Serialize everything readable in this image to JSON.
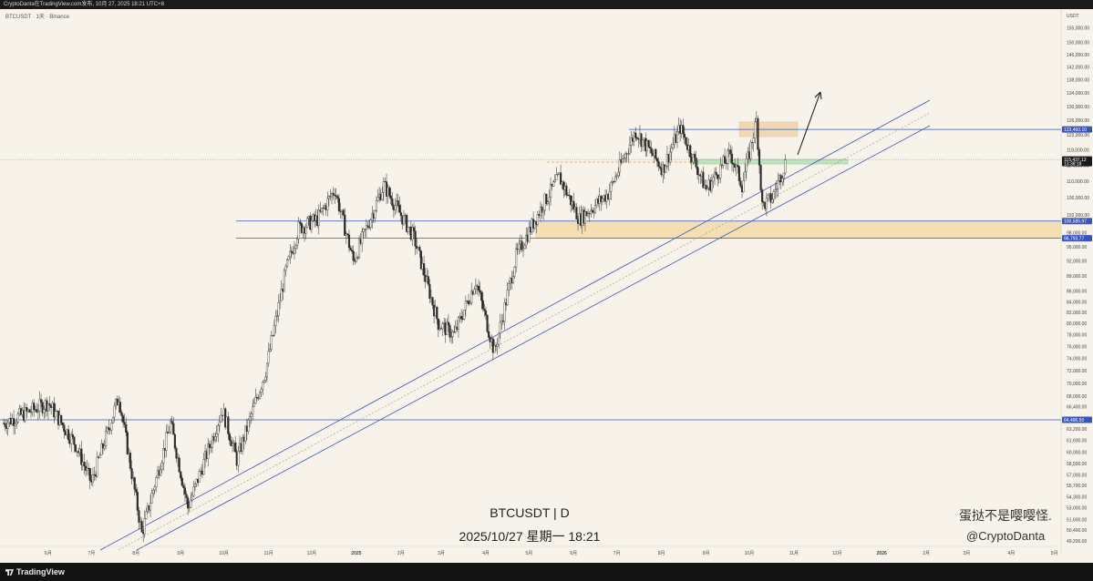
{
  "topbar": {
    "text": "CryptoDanta在TradingView.com发布, 10月 27, 2025 18:21 UTC+8"
  },
  "chart_info": {
    "symbol_line": "BTCUSDT · 1天 · Binance"
  },
  "watermark": {
    "title": "BTCUSDT | D",
    "time": "2025/10/27 星期一 18:21"
  },
  "signature": {
    "line1": "蛋挞不是嘤嘤怪.",
    "line2": "@CryptoDanta"
  },
  "branding": {
    "logo_text": "TradingView"
  },
  "colors": {
    "background": "#f7f3ea",
    "up_candle": "#2a2a2a",
    "down_candle": "#2a2a2a",
    "level_line": "#3a55b8",
    "zone_fill": "#f3d9a8",
    "green_zone": "#bfe3bf"
  },
  "chart_data": {
    "type": "line",
    "series": [
      {
        "values": [
          {
            "x": "2024-05",
            "y": 64000
          },
          {
            "x": "2024-06",
            "y": 67000
          },
          {
            "x": "2024-06-20",
            "y": 61000
          },
          {
            "x": "2024-07",
            "y": 56000
          },
          {
            "x": "2024-07-20",
            "y": 68000
          },
          {
            "x": "2024-08-05",
            "y": 50000
          },
          {
            "x": "2024-08-25",
            "y": 64000
          },
          {
            "x": "2024-09-06",
            "y": 53000
          },
          {
            "x": "2024-09-30",
            "y": 66000
          },
          {
            "x": "2024-10-10",
            "y": 59000
          },
          {
            "x": "2024-10-30",
            "y": 72000
          },
          {
            "x": "2024-11-13",
            "y": 90000
          },
          {
            "x": "2024-11-22",
            "y": 99000
          },
          {
            "x": "2024-12-05",
            "y": 101000
          },
          {
            "x": "2024-12-17",
            "y": 108000
          },
          {
            "x": "2024-12-30",
            "y": 92000
          },
          {
            "x": "2025-01-20",
            "y": 109000
          },
          {
            "x": "2025-02-10",
            "y": 97000
          },
          {
            "x": "2025-02-27",
            "y": 80000
          },
          {
            "x": "2025-03-10",
            "y": 78000
          },
          {
            "x": "2025-03-25",
            "y": 88000
          },
          {
            "x": "2025-04-07",
            "y": 75000
          },
          {
            "x": "2025-04-22",
            "y": 93000
          },
          {
            "x": "2025-05-10",
            "y": 104000
          },
          {
            "x": "2025-05-22",
            "y": 111000
          },
          {
            "x": "2025-06-05",
            "y": 101000
          },
          {
            "x": "2025-06-25",
            "y": 107000
          },
          {
            "x": "2025-07-14",
            "y": 123000
          },
          {
            "x": "2025-08-02",
            "y": 113000
          },
          {
            "x": "2025-08-14",
            "y": 124000
          },
          {
            "x": "2025-09-01",
            "y": 108000
          },
          {
            "x": "2025-09-18",
            "y": 117000
          },
          {
            "x": "2025-09-26",
            "y": 109000
          },
          {
            "x": "2025-10-06",
            "y": 126000
          },
          {
            "x": "2025-10-10",
            "y": 104000
          },
          {
            "x": "2025-10-17",
            "y": 106000
          },
          {
            "x": "2025-10-27",
            "y": 115437
          }
        ]
      }
    ],
    "x_ticks": [
      "6月",
      "7月",
      "8月",
      "9月",
      "10月",
      "11月",
      "12月",
      "2025",
      "2月",
      "3月",
      "4月",
      "5月",
      "6月",
      "7月",
      "8月",
      "9月",
      "10月",
      "11月",
      "12月",
      "2026",
      "2月",
      "3月",
      "4月",
      "5月"
    ],
    "y_ticks": [
      "155,000.00",
      "150,000.00",
      "146,000.00",
      "142,000.00",
      "138,000.00",
      "134,000.00",
      "130,000.00",
      "126,000.00",
      "122,000.00",
      "118,000.00",
      "114,000.00",
      "110,000.00",
      "106,000.00",
      "102,000.00",
      "98,000.00",
      "95,000.00",
      "92,000.00",
      "89,000.00",
      "86,000.00",
      "84,000.00",
      "82,000.00",
      "80,000.00",
      "78,000.00",
      "76,000.00",
      "74,000.00",
      "72,000.00",
      "70,000.00",
      "68,000.00",
      "66,400.00",
      "64,400.00",
      "63,200.00",
      "61,600.00",
      "60,000.00",
      "58,500.00",
      "57,000.00",
      "55,700.00",
      "54,300.00",
      "53,000.00",
      "51,600.00",
      "50,400.00",
      "49,200.00"
    ],
    "y_axis_unit": "USDT",
    "price_tags": [
      {
        "value": "123,460.10",
        "color": "#3a55b8"
      },
      {
        "value": "115,437.12",
        "sub": "13:38:18",
        "color": "#1a1a1a"
      },
      {
        "value": "100,585.97",
        "color": "#3a55b8"
      },
      {
        "value": "96,793.77",
        "color": "#3a55b8"
      },
      {
        "value": "64,496.50",
        "color": "#3a55b8"
      }
    ],
    "horizontal_levels": [
      123460.1,
      100585.97,
      96793.77,
      64496.5
    ],
    "current_price": 115437.12,
    "scale": "log"
  }
}
